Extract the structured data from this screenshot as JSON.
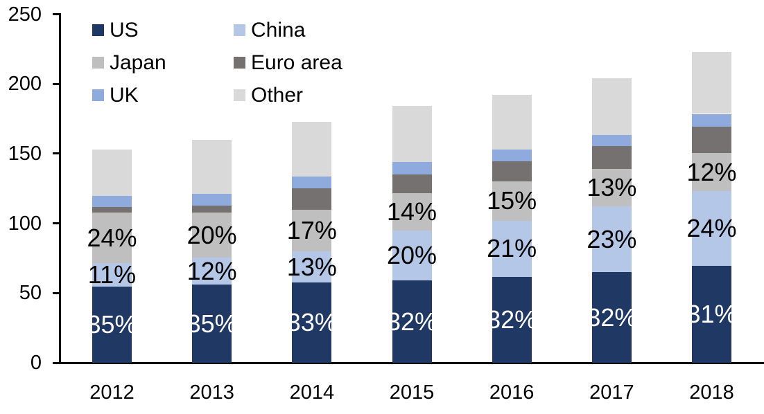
{
  "chart_data": {
    "type": "bar",
    "subtype": "stacked",
    "title": "",
    "xlabel": "",
    "ylabel": "",
    "categories": [
      "2012",
      "2013",
      "2014",
      "2015",
      "2016",
      "2017",
      "2018"
    ],
    "series": [
      {
        "name": "US",
        "color": "#1f3864",
        "values": [
          54.5,
          56,
          57.5,
          59,
          61.5,
          65,
          69.5
        ],
        "labels": [
          "35%",
          "35%",
          "33%",
          "32%",
          "32%",
          "32%",
          "31%"
        ],
        "label_color": "#ffffff"
      },
      {
        "name": "China",
        "color": "#b4c7e7",
        "values": [
          17,
          19.5,
          22.5,
          36,
          40.5,
          47,
          53.5
        ],
        "labels": [
          "11%",
          "12%",
          "13%",
          "20%",
          "21%",
          "23%",
          "24%"
        ],
        "label_color": "#000000"
      },
      {
        "name": "Japan",
        "color": "#bfbfbf",
        "values": [
          36,
          32,
          29.5,
          26.5,
          28,
          27,
          27.5
        ],
        "labels": [
          "24%",
          "20%",
          "17%",
          "14%",
          "15%",
          "13%",
          "12%"
        ],
        "label_color": "#000000"
      },
      {
        "name": "Euro area",
        "color": "#767171",
        "values": [
          4,
          5,
          15.5,
          13.5,
          14.5,
          16.5,
          19
        ],
        "labels": [
          null,
          null,
          null,
          null,
          null,
          null,
          null
        ],
        "label_color": "#000000"
      },
      {
        "name": "UK",
        "color": "#8faadc",
        "values": [
          8,
          8.5,
          8.5,
          9,
          8.5,
          8,
          9
        ],
        "labels": [
          null,
          null,
          null,
          null,
          null,
          null,
          null
        ],
        "label_color": "#000000"
      },
      {
        "name": "Other",
        "color": "#d9d9d9",
        "values": [
          33.5,
          39,
          39.5,
          40,
          39,
          40.5,
          44.5
        ],
        "labels": [
          null,
          null,
          null,
          null,
          null,
          null,
          null
        ],
        "label_color": "#000000"
      }
    ],
    "totals": [
      153,
      160,
      173,
      184,
      192,
      204,
      223
    ],
    "y_axis": {
      "min": 0,
      "max": 250,
      "tick_step": 50,
      "tick_labels": [
        "0",
        "50",
        "100",
        "150",
        "200",
        "250"
      ]
    },
    "legend": {
      "position": "top-left",
      "columns": 2,
      "entries": [
        "US",
        "China",
        "Japan",
        "Euro area",
        "UK",
        "Other"
      ]
    },
    "grid": "off",
    "axis_color": "#000000"
  }
}
